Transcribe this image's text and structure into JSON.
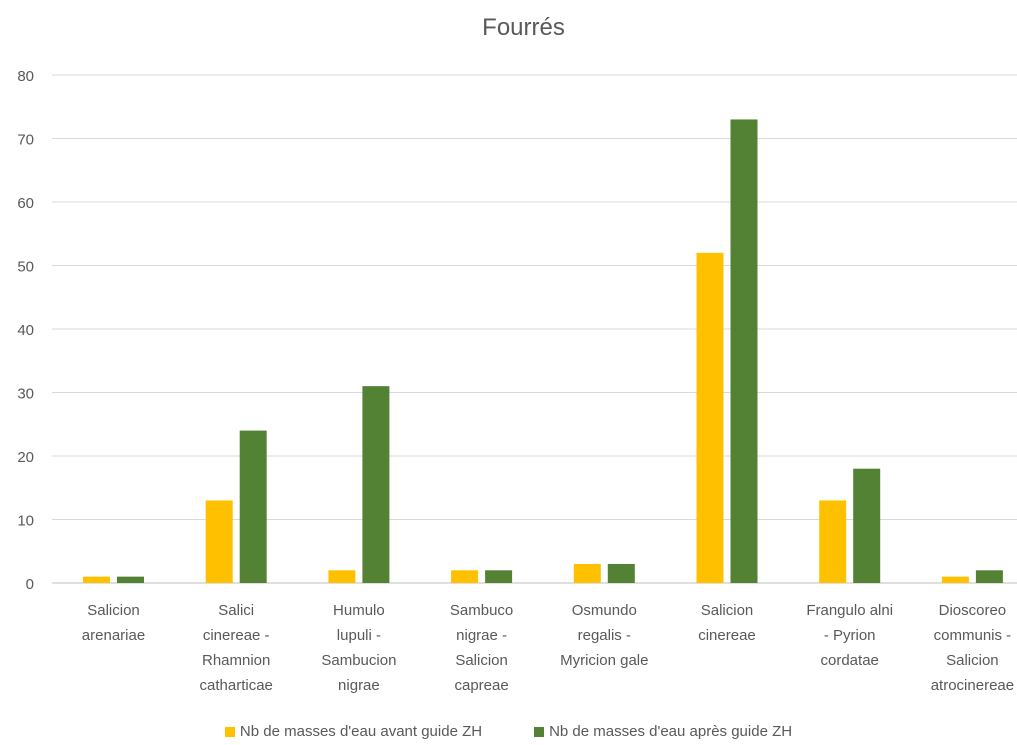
{
  "chart_data": {
    "type": "bar",
    "title": "Fourrés",
    "categories": [
      [
        "Salicion",
        "arenariae"
      ],
      [
        "Salici",
        "cinereae -",
        "Rhamnion",
        "catharticae"
      ],
      [
        "Humulo",
        "lupuli -",
        "Sambucion",
        "nigrae"
      ],
      [
        "Sambuco",
        "nigrae -",
        "Salicion",
        "capreae"
      ],
      [
        "Osmundo",
        "regalis -",
        "Myricion gale"
      ],
      [
        "Salicion",
        "cinereae"
      ],
      [
        "Frangulo alni",
        "- Pyrion",
        "cordatae"
      ],
      [
        "Dioscoreo",
        "communis -",
        "Salicion",
        "atrocinereae"
      ]
    ],
    "series": [
      {
        "name": "Nb de masses d'eau avant guide ZH",
        "color": "#FFC000",
        "values": [
          1,
          13,
          2,
          2,
          3,
          52,
          13,
          1
        ]
      },
      {
        "name": "Nb de masses d'eau après guide ZH",
        "color": "#548235",
        "values": [
          1,
          24,
          31,
          2,
          3,
          73,
          18,
          2
        ]
      }
    ],
    "ylim": [
      0,
      80
    ],
    "yticks": [
      0,
      10,
      20,
      30,
      40,
      50,
      60,
      70,
      80
    ],
    "grid": true,
    "legend_position": "bottom"
  }
}
